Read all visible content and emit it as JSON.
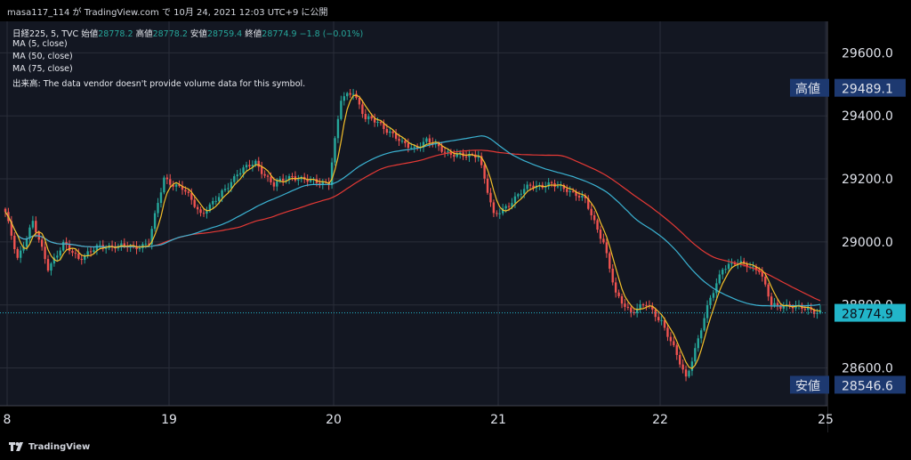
{
  "header": {
    "title": "masa117_114 が TradingView.com で 10月 24, 2021 12:03 UTC+9 に公開"
  },
  "legend": {
    "symbol": "日経225, 5, TVC",
    "open_label": "始値",
    "open": "28778.2",
    "high_label": "高値",
    "high": "28778.2",
    "low_label": "安値",
    "low": "28759.4",
    "close_label": "終値",
    "close": "28774.9",
    "change": "−1.8 (−0.01%)",
    "ma5": "MA (5, close)",
    "ma50": "MA (50, close)",
    "ma75": "MA (75, close)",
    "volume_note": "出来高: The data vendor doesn't provide volume data for this symbol."
  },
  "price_axis": {
    "ticks": [
      "29600.0",
      "29400.0",
      "29200.0",
      "29000.0",
      "28800.0",
      "28600.0"
    ],
    "high_label": "高値",
    "high_value": "29489.1",
    "last_value": "28774.9",
    "low_label": "安値",
    "low_value": "28546.6"
  },
  "time_axis": {
    "ticks": [
      "8",
      "19",
      "20",
      "21",
      "22",
      "25"
    ]
  },
  "colors": {
    "background": "#131722",
    "up": "#26a69a",
    "down": "#ef5350",
    "ma5": "#f5c02a",
    "ma50": "#3bb3d3",
    "ma75": "#e53935",
    "last_price_bg": "#22b5c9",
    "label_bg": "#1d3970"
  },
  "footer": {
    "brand": "TradingView"
  },
  "chart_data": {
    "type": "candlestick",
    "x_ticks": [
      "8",
      "19",
      "20",
      "21",
      "22",
      "25"
    ],
    "y_ticks": [
      29600,
      29400,
      29200,
      29000,
      28800,
      28600
    ],
    "ylim": [
      28480,
      29700
    ],
    "anchors": [
      [
        0,
        29090
      ],
      [
        4,
        28950
      ],
      [
        9,
        29060
      ],
      [
        14,
        28920
      ],
      [
        19,
        28990
      ],
      [
        24,
        28950
      ],
      [
        30,
        28980
      ],
      [
        36,
        28990
      ],
      [
        42,
        28980
      ],
      [
        47,
        29000
      ],
      [
        52,
        29200
      ],
      [
        58,
        29170
      ],
      [
        64,
        29090
      ],
      [
        70,
        29140
      ],
      [
        76,
        29220
      ],
      [
        82,
        29250
      ],
      [
        88,
        29180
      ],
      [
        94,
        29210
      ],
      [
        100,
        29190
      ],
      [
        106,
        29190
      ],
      [
        110,
        29450
      ],
      [
        114,
        29480
      ],
      [
        118,
        29390
      ],
      [
        122,
        29380
      ],
      [
        126,
        29350
      ],
      [
        130,
        29310
      ],
      [
        134,
        29300
      ],
      [
        138,
        29320
      ],
      [
        142,
        29300
      ],
      [
        146,
        29280
      ],
      [
        150,
        29270
      ],
      [
        155,
        29280
      ],
      [
        160,
        29080
      ],
      [
        166,
        29130
      ],
      [
        172,
        29180
      ],
      [
        178,
        29180
      ],
      [
        184,
        29170
      ],
      [
        190,
        29130
      ],
      [
        196,
        29000
      ],
      [
        200,
        28830
      ],
      [
        205,
        28780
      ],
      [
        210,
        28800
      ],
      [
        215,
        28750
      ],
      [
        219,
        28660
      ],
      [
        223,
        28570
      ],
      [
        227,
        28690
      ],
      [
        231,
        28820
      ],
      [
        235,
        28920
      ],
      [
        239,
        28930
      ],
      [
        243,
        28930
      ],
      [
        247,
        28910
      ],
      [
        251,
        28800
      ],
      [
        255,
        28800
      ],
      [
        259,
        28790
      ],
      [
        263,
        28790
      ],
      [
        267,
        28775
      ]
    ]
  }
}
